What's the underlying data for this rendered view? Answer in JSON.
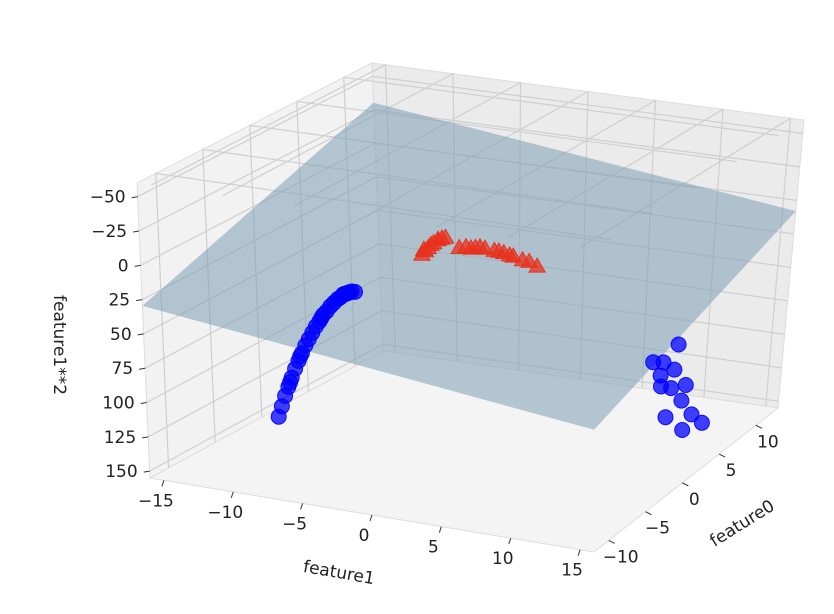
{
  "chart_data": {
    "type": "scatter",
    "projection": "3d",
    "title": "",
    "axes": {
      "x": {
        "label": "feature0",
        "ticks": [
          -10,
          -5,
          0,
          5,
          10
        ],
        "range": [
          -12,
          13
        ]
      },
      "y": {
        "label": "feature1",
        "ticks": [
          -15,
          -10,
          -5,
          0,
          5,
          10,
          15
        ],
        "range": [
          -16,
          16
        ]
      },
      "z": {
        "label": "feature1**2",
        "ticks": [
          -50,
          -25,
          0,
          25,
          50,
          75,
          100,
          125,
          150
        ],
        "range": [
          -60,
          155
        ],
        "inverted": true
      }
    },
    "grid": true,
    "series": [
      {
        "marker": "circle",
        "color": "#0000ff",
        "points": [
          [
            -10.2,
            -2.0,
            4
          ],
          [
            -9.8,
            -2.5,
            6
          ],
          [
            -9.4,
            -3.0,
            9
          ],
          [
            -9.0,
            -3.4,
            12
          ],
          [
            -8.7,
            -3.8,
            14
          ],
          [
            -8.4,
            -4.2,
            18
          ],
          [
            -8.1,
            -4.6,
            21
          ],
          [
            -7.9,
            -5.0,
            25
          ],
          [
            -7.7,
            -5.4,
            29
          ],
          [
            -7.5,
            -5.8,
            34
          ],
          [
            -7.3,
            -6.2,
            38
          ],
          [
            -7.1,
            -6.6,
            44
          ],
          [
            -6.9,
            -7.0,
            49
          ],
          [
            -6.7,
            -7.4,
            55
          ],
          [
            -6.5,
            -7.8,
            61
          ],
          [
            -6.3,
            -8.2,
            67
          ],
          [
            -6.1,
            -8.6,
            74
          ],
          [
            -5.9,
            -9.0,
            81
          ],
          [
            -5.7,
            -9.4,
            88
          ],
          [
            -5.5,
            -9.8,
            96
          ],
          [
            -5.3,
            -10.2,
            104
          ],
          [
            -5.1,
            -10.6,
            112
          ],
          [
            -4.9,
            -11.0,
            121
          ],
          [
            -4.7,
            -11.4,
            130
          ],
          [
            -9.6,
            -2.8,
            8
          ],
          [
            -8.8,
            -3.6,
            13
          ],
          [
            -7.2,
            -6.4,
            41
          ],
          [
            -6.0,
            -8.8,
            77
          ],
          [
            -5.4,
            -10.0,
            100
          ],
          [
            6.2,
            10.5,
            110
          ],
          [
            6.8,
            11.0,
            121
          ],
          [
            7.4,
            11.5,
            132
          ],
          [
            8.0,
            12.0,
            144
          ],
          [
            7.0,
            10.2,
            104
          ],
          [
            6.0,
            10.0,
            100
          ],
          [
            5.8,
            10.8,
            116
          ],
          [
            7.8,
            10.6,
            112
          ],
          [
            8.4,
            11.2,
            125
          ],
          [
            6.5,
            12.2,
            149
          ],
          [
            9.2,
            10.0,
            100
          ],
          [
            5.2,
            11.6,
            135
          ],
          [
            8.8,
            12.4,
            153
          ]
        ]
      },
      {
        "marker": "triangle",
        "color": "#e8321e",
        "points": [
          [
            -1.5,
            0.5,
            0
          ],
          [
            -1.2,
            1.0,
            1
          ],
          [
            -0.9,
            1.5,
            2
          ],
          [
            -0.6,
            2.0,
            4
          ],
          [
            -0.3,
            2.5,
            6
          ],
          [
            0.0,
            3.0,
            9
          ],
          [
            0.3,
            3.5,
            12
          ],
          [
            -1.8,
            0.2,
            0
          ],
          [
            -0.4,
            2.2,
            5
          ],
          [
            0.6,
            3.8,
            14
          ],
          [
            -1.0,
            1.2,
            1
          ],
          [
            -0.1,
            2.8,
            8
          ],
          [
            0.9,
            4.2,
            18
          ],
          [
            -1.4,
            0.8,
            1
          ],
          [
            1.2,
            -3.0,
            9
          ],
          [
            1.5,
            -3.5,
            12
          ],
          [
            1.8,
            -4.0,
            16
          ],
          [
            2.1,
            -4.4,
            19
          ],
          [
            2.4,
            -4.8,
            23
          ],
          [
            2.7,
            -5.2,
            27
          ],
          [
            1.0,
            -2.6,
            7
          ],
          [
            2.0,
            -3.8,
            14
          ],
          [
            2.9,
            -5.6,
            31
          ],
          [
            1.6,
            -4.6,
            21
          ]
        ]
      }
    ],
    "plane": {
      "color": "#7f9fb6",
      "opacity": 0.55
    }
  }
}
